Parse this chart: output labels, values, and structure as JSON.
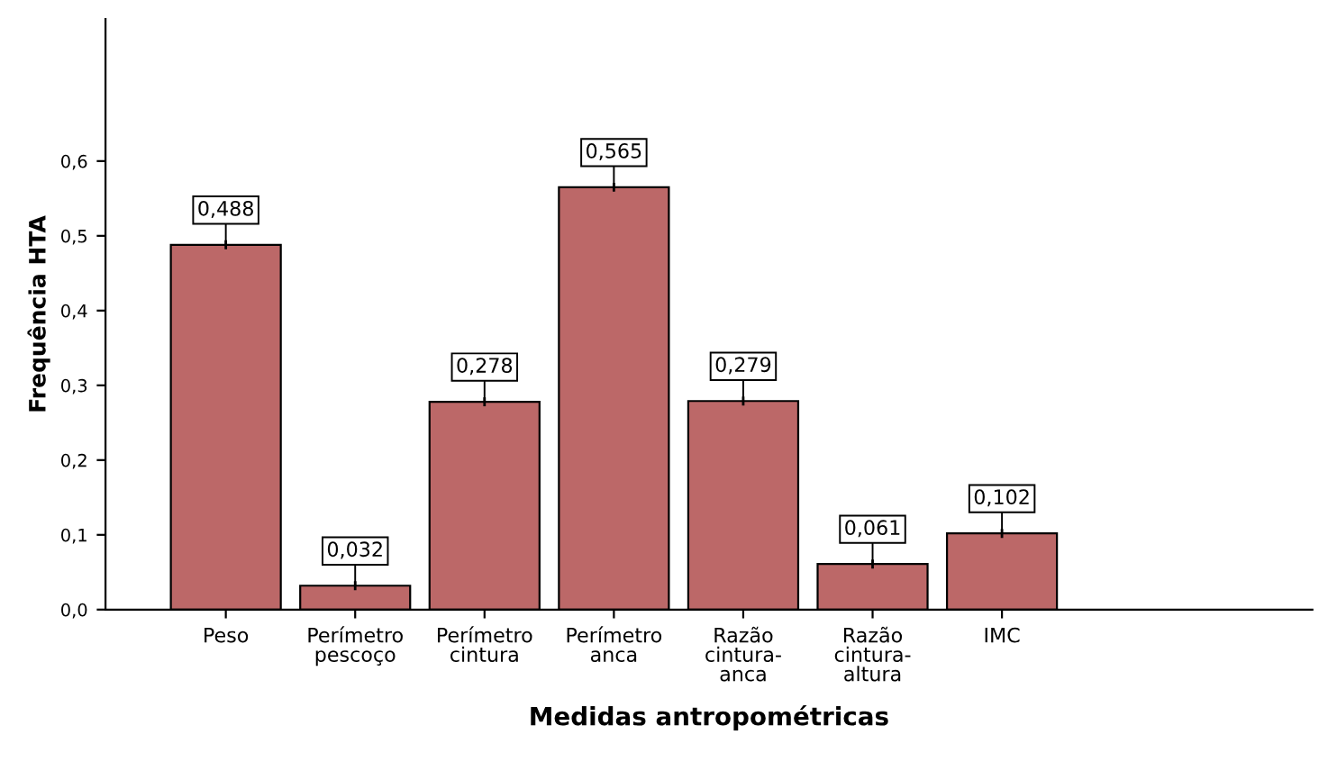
{
  "chart_data": {
    "type": "bar",
    "xlabel": "Medidas antropométricas",
    "ylabel": "Frequência HTA",
    "categories": [
      "Peso",
      "Perímetro\npescoço",
      "Perímetro\ncintura",
      "Perímetro\nanca",
      "Razão\ncintura-\nanca",
      "Razão\ncintura-\naltura",
      "IMC"
    ],
    "values": [
      0.488,
      0.032,
      0.278,
      0.565,
      0.279,
      0.061,
      0.102
    ],
    "value_labels": [
      "0,488",
      "0,032",
      "0,278",
      "0,565",
      "0,279",
      "0,061",
      "0,102"
    ],
    "errors": [
      0.006,
      0.006,
      0.006,
      0.006,
      0.006,
      0.006,
      0.006
    ],
    "color": "#bc6868",
    "ylim": [
      0,
      0.79
    ],
    "yticks": [
      {
        "value": 0,
        "label": "0,0"
      },
      {
        "value": 0.1,
        "label": "0,1"
      },
      {
        "value": 0.2,
        "label": "0,2"
      },
      {
        "value": 0.3,
        "label": "0,3"
      },
      {
        "value": 0.4,
        "label": "0,4"
      },
      {
        "value": 0.5,
        "label": "0,5"
      },
      {
        "value": 0.6,
        "label": "0,6"
      }
    ],
    "grid": false
  }
}
